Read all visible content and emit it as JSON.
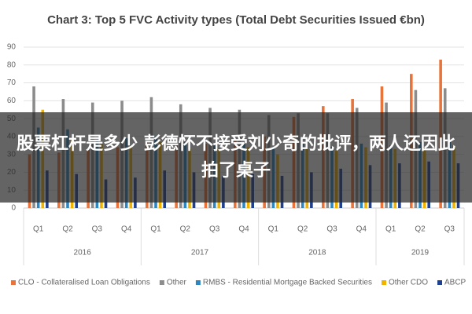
{
  "chart_data": {
    "type": "bar",
    "title": "Chart 3: Top 5 FVC Activity types (Total Debt Securities Issued €bn)",
    "category_groups": [
      {
        "label": "2016",
        "categories": [
          "Q1",
          "Q2",
          "Q3",
          "Q4"
        ]
      },
      {
        "label": "2017",
        "categories": [
          "Q1",
          "Q2",
          "Q3",
          "Q4"
        ]
      },
      {
        "label": "2018",
        "categories": [
          "Q1",
          "Q2",
          "Q3",
          "Q4"
        ]
      },
      {
        "label": "2019",
        "categories": [
          "Q1",
          "Q2",
          "Q3"
        ]
      }
    ],
    "series": [
      {
        "name": "CLO - Collateralised Loan Obligations",
        "color": "#e8743b",
        "values": [
          30,
          31,
          33,
          34,
          37,
          35,
          36,
          38,
          40,
          51,
          57,
          61,
          68,
          75,
          83
        ]
      },
      {
        "name": "Other",
        "color": "#8c8c8c",
        "values": [
          68,
          61,
          59,
          60,
          62,
          58,
          56,
          55,
          52,
          53,
          53,
          56,
          59,
          66,
          67
        ]
      },
      {
        "name": "RMBS - Residential Mortgage Backed Securities",
        "color": "#2e86c1",
        "values": [
          45,
          44,
          38,
          39,
          40,
          37,
          35,
          36,
          34,
          36,
          34,
          36,
          35,
          37,
          37
        ]
      },
      {
        "name": "Other CDO",
        "color": "#f0b400",
        "values": [
          55,
          38,
          36,
          35,
          37,
          33,
          33,
          34,
          30,
          33,
          32,
          34,
          33,
          34,
          35
        ]
      },
      {
        "name": "ABCP",
        "color": "#1f3f8f",
        "values": [
          21,
          19,
          16,
          17,
          21,
          20,
          18,
          19,
          18,
          20,
          22,
          24,
          25,
          26,
          25
        ]
      }
    ],
    "ylim": [
      0,
      90
    ],
    "yticks": [
      0,
      10,
      20,
      30,
      40,
      50,
      60,
      70,
      80,
      90
    ],
    "grid": true,
    "legend": "bottom"
  },
  "overlay": {
    "text": "股票杠杆是多少 彭德怀不接受刘少奇的批评，两人还因此拍了桌子"
  }
}
